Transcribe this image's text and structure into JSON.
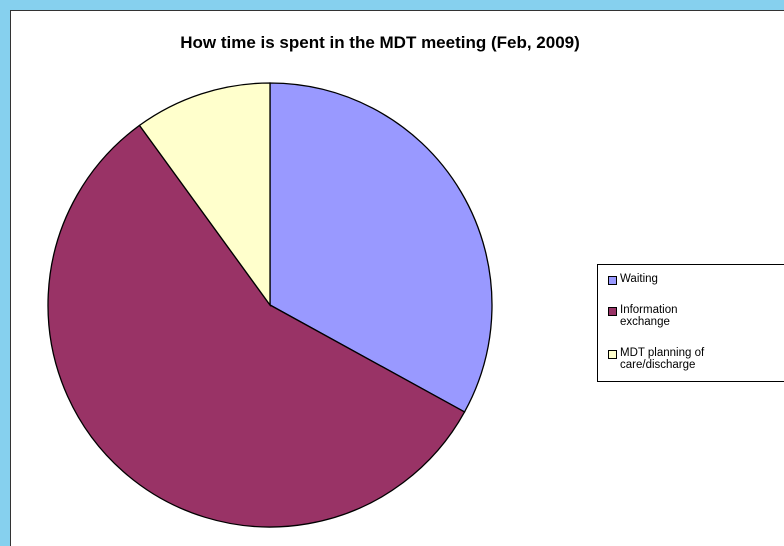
{
  "chart_data": {
    "type": "pie",
    "title": "How time is spent in the MDT meeting (Feb, 2009)",
    "categories": [
      "Waiting",
      "Information exchange",
      "MDT planning of care/discharge"
    ],
    "values": [
      33,
      57,
      10
    ],
    "colors": [
      "#9999ff",
      "#993366",
      "#ffffcc"
    ],
    "legend": "right"
  }
}
